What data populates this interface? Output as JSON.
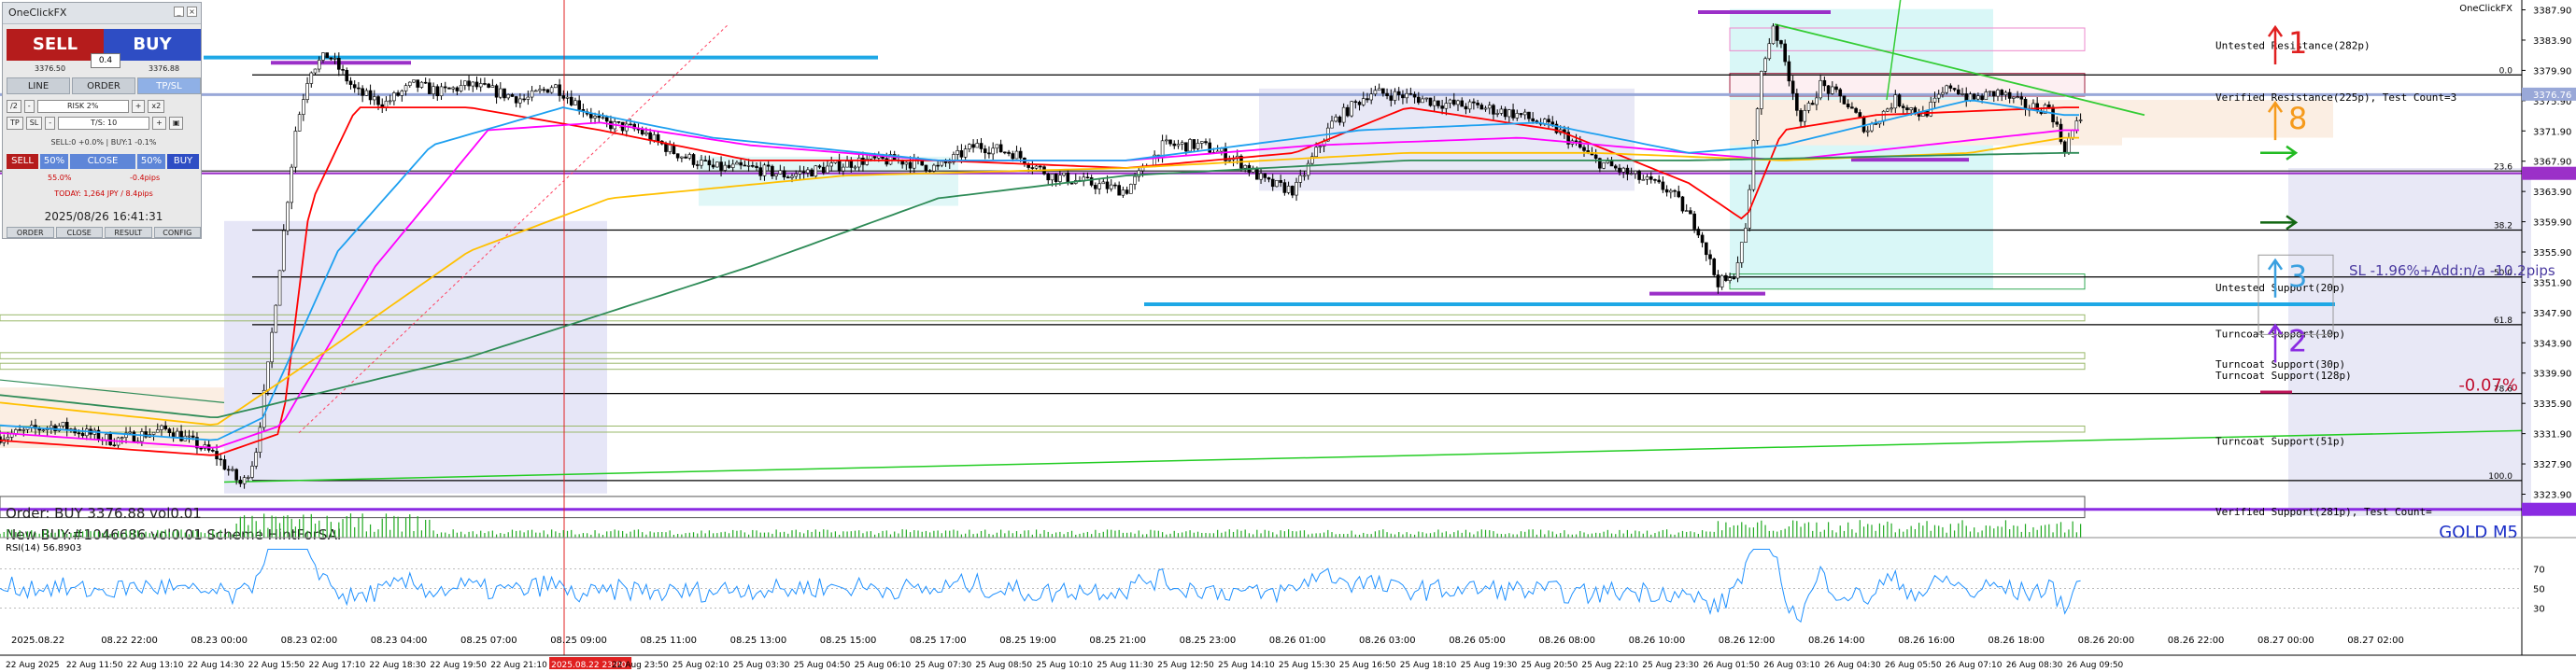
{
  "panel": {
    "title": "OneClickFX",
    "sell_label": "SELL",
    "buy_label": "BUY",
    "lot": "0.4",
    "sell_price": "3376.50",
    "buy_price": "3376.88",
    "tabs": [
      "LINE",
      "ORDER",
      "TP/SL"
    ],
    "row1": {
      "left": "/2",
      "risk": "RISK 2%",
      "right": "x2"
    },
    "row2": {
      "tp": "TP",
      "sl": "SL",
      "val": "T/S: 10"
    },
    "status": "SELL:0 +0.0% | BUY:1 -0.1%",
    "mid": [
      "SELL",
      "50%",
      "CLOSE",
      "50%",
      "BUY"
    ],
    "pl1": "55.0%",
    "pl2": "-0.4pips",
    "today": "TODAY: 1,264 JPY / 8.4pips",
    "clock": "2025/08/26  16:41:31",
    "bottom": [
      "ORDER",
      "CLOSE",
      "RESULT",
      "CONFIG"
    ]
  },
  "top_right_label": "OneClickFX",
  "overlay_text": {
    "order_line": "Order: BUY 3376.88 vol0.01",
    "new_buy": "New BUY:#1046686 vol0.01 Scheme HintForSAl",
    "sl_info": "SL -1.96%+Add:n/a -10.2pips",
    "pct": "-0.07%",
    "symbol": "GOLD M5",
    "rsi": "RSI(14) 56.8903"
  },
  "zone_labels": [
    {
      "text": "Untested Resistance(282p)",
      "price": 3383.2
    },
    {
      "text": "Verified Resistance(225p), Test Count=3",
      "price": 3376.4
    },
    {
      "text": "Untested Support(20p)",
      "price": 3351.2
    },
    {
      "text": "Turncoat Support(10p)",
      "price": 3345.1
    },
    {
      "text": "Turncoat Support(30p)",
      "price": 3341.1
    },
    {
      "text": "Turncoat Support(128p)",
      "price": 3339.6
    },
    {
      "text": "Turncoat Support(51p)",
      "price": 3330.9
    },
    {
      "text": "Verified Support(281p), Test Count=",
      "price": 3321.6
    }
  ],
  "fib_labels": [
    {
      "text": "0.0",
      "price": 3379.3
    },
    {
      "text": "23.6",
      "price": 3366.6
    },
    {
      "text": "38.2",
      "price": 3358.8
    },
    {
      "text": "50.0",
      "price": 3352.6
    },
    {
      "text": "61.8",
      "price": 3346.3
    },
    {
      "text": "78.6",
      "price": 3337.2
    },
    {
      "text": "100.0",
      "price": 3325.7
    }
  ],
  "signal_arrows": [
    {
      "label": "1",
      "dir": "up",
      "color": "#e02020",
      "price": 3383.4
    },
    {
      "label": "8",
      "dir": "up",
      "color": "#f59a1c",
      "price": 3373.4
    },
    {
      "label": "3",
      "dir": "up",
      "color": "#3aa0e0",
      "price": 3352.6
    },
    {
      "label": "2",
      "dir": "up",
      "color": "#8a2be2",
      "price": 3344.0
    }
  ],
  "price_current": "3376.76",
  "chart_data": {
    "type": "line",
    "symbol": "GOLD M5",
    "y_ticks": [
      3387.9,
      3383.9,
      3379.9,
      3375.9,
      3371.9,
      3367.9,
      3363.9,
      3359.9,
      3355.9,
      3351.9,
      3347.9,
      3343.9,
      3339.9,
      3335.9,
      3331.9,
      3327.9,
      3323.9
    ],
    "ylim": [
      3321.0,
      3389.2
    ],
    "x_date_labels": [
      "2025.08.22",
      "08.22 22:00",
      "08.23 00:00",
      "08.23 02:00",
      "08.23 04:00",
      "08.25 07:00",
      "08.25 09:00",
      "08.25 11:00",
      "08.25 13:00",
      "08.25 15:00",
      "08.25 17:00",
      "08.25 19:00",
      "08.25 21:00",
      "08.25 23:00",
      "08.26 01:00",
      "08.26 03:00",
      "08.26 05:00",
      "08.26 08:00",
      "08.26 10:00",
      "08.26 12:00",
      "08.26 14:00",
      "08.26 16:00",
      "08.26 18:00",
      "08.26 20:00",
      "08.26 22:00",
      "08.27 00:00",
      "08.27 02:00"
    ],
    "x_time_labels": [
      "22 Aug 2025",
      "22 Aug 11:50",
      "22 Aug 13:10",
      "22 Aug 14:30",
      "22 Aug 15:50",
      "22 Aug 17:10",
      "22 Aug 18:30",
      "22 Aug 19:50",
      "22 Aug 21:10",
      "2025.08.22 23:00",
      "22 Aug 23:50",
      "25 Aug 02:10",
      "25 Aug 03:30",
      "25 Aug 04:50",
      "25 Aug 06:10",
      "25 Aug 07:30",
      "25 Aug 08:50",
      "25 Aug 10:10",
      "25 Aug 11:30",
      "25 Aug 12:50",
      "25 Aug 14:10",
      "25 Aug 15:30",
      "25 Aug 16:50",
      "25 Aug 18:10",
      "25 Aug 19:30",
      "25 Aug 20:50",
      "25 Aug 22:10",
      "25 Aug 23:30",
      "26 Aug 01:50",
      "26 Aug 03:10",
      "26 Aug 04:30",
      "26 Aug 05:50",
      "26 Aug 07:10",
      "26 Aug 08:30",
      "26 Aug 09:50"
    ],
    "price_keys": [
      [
        0,
        3331.5
      ],
      [
        60,
        3333
      ],
      [
        120,
        3331
      ],
      [
        180,
        3332.5
      ],
      [
        230,
        3329
      ],
      [
        258,
        3325
      ],
      [
        272,
        3329
      ],
      [
        285,
        3340
      ],
      [
        300,
        3356
      ],
      [
        315,
        3372
      ],
      [
        330,
        3380
      ],
      [
        350,
        3382
      ],
      [
        380,
        3377
      ],
      [
        410,
        3375.5
      ],
      [
        440,
        3378
      ],
      [
        470,
        3377
      ],
      [
        500,
        3378
      ],
      [
        530,
        3377
      ],
      [
        560,
        3376
      ],
      [
        590,
        3378
      ],
      [
        610,
        3376
      ],
      [
        640,
        3373
      ],
      [
        680,
        3372
      ],
      [
        720,
        3369
      ],
      [
        760,
        3367
      ],
      [
        800,
        3367
      ],
      [
        840,
        3366
      ],
      [
        880,
        3367
      ],
      [
        920,
        3368
      ],
      [
        960,
        3368
      ],
      [
        1000,
        3367
      ],
      [
        1040,
        3370
      ],
      [
        1080,
        3369
      ],
      [
        1120,
        3366
      ],
      [
        1160,
        3365
      ],
      [
        1200,
        3364
      ],
      [
        1240,
        3370
      ],
      [
        1280,
        3370
      ],
      [
        1320,
        3368
      ],
      [
        1350,
        3365
      ],
      [
        1380,
        3364
      ],
      [
        1420,
        3373
      ],
      [
        1460,
        3377
      ],
      [
        1500,
        3376.5
      ],
      [
        1540,
        3375.5
      ],
      [
        1580,
        3375
      ],
      [
        1620,
        3374
      ],
      [
        1660,
        3372
      ],
      [
        1700,
        3368
      ],
      [
        1740,
        3366
      ],
      [
        1780,
        3364
      ],
      [
        1810,
        3359
      ],
      [
        1830,
        3352
      ],
      [
        1845,
        3352
      ],
      [
        1860,
        3358
      ],
      [
        1875,
        3378
      ],
      [
        1890,
        3386
      ],
      [
        1905,
        3380
      ],
      [
        1920,
        3373
      ],
      [
        1940,
        3378
      ],
      [
        1965,
        3376
      ],
      [
        1990,
        3372
      ],
      [
        2020,
        3376
      ],
      [
        2050,
        3374
      ],
      [
        2080,
        3378
      ],
      [
        2100,
        3376
      ],
      [
        2130,
        3377
      ],
      [
        2160,
        3375
      ],
      [
        2185,
        3375
      ],
      [
        2200,
        3369.5
      ],
      [
        2210,
        3372
      ],
      [
        2220,
        3374
      ]
    ],
    "ma_series": [
      {
        "color": "#ff0000",
        "keys": [
          [
            0,
            3331
          ],
          [
            230,
            3329
          ],
          [
            300,
            3332
          ],
          [
            330,
            3362
          ],
          [
            380,
            3375
          ],
          [
            500,
            3375
          ],
          [
            640,
            3372
          ],
          [
            800,
            3368
          ],
          [
            1000,
            3368
          ],
          [
            1200,
            3367
          ],
          [
            1380,
            3369
          ],
          [
            1500,
            3375
          ],
          [
            1660,
            3372
          ],
          [
            1800,
            3365
          ],
          [
            1860,
            3360
          ],
          [
            1900,
            3372
          ],
          [
            2000,
            3374
          ],
          [
            2200,
            3375
          ]
        ]
      },
      {
        "color": "#ff00ff",
        "keys": [
          [
            0,
            3332
          ],
          [
            230,
            3330
          ],
          [
            300,
            3333
          ],
          [
            400,
            3354
          ],
          [
            520,
            3372
          ],
          [
            640,
            3373
          ],
          [
            800,
            3370
          ],
          [
            1000,
            3368
          ],
          [
            1200,
            3368
          ],
          [
            1400,
            3370
          ],
          [
            1620,
            3371
          ],
          [
            1800,
            3369
          ],
          [
            1900,
            3368
          ],
          [
            2050,
            3370
          ],
          [
            2200,
            3372
          ]
        ]
      },
      {
        "color": "#1ea0f0",
        "keys": [
          [
            0,
            3333
          ],
          [
            230,
            3331
          ],
          [
            280,
            3334
          ],
          [
            360,
            3356
          ],
          [
            460,
            3370
          ],
          [
            600,
            3375
          ],
          [
            760,
            3371
          ],
          [
            1000,
            3368
          ],
          [
            1200,
            3368
          ],
          [
            1450,
            3372
          ],
          [
            1640,
            3373
          ],
          [
            1800,
            3369
          ],
          [
            1900,
            3370
          ],
          [
            2100,
            3376
          ],
          [
            2200,
            3374
          ]
        ]
      },
      {
        "color": "#ffc000",
        "keys": [
          [
            0,
            3336
          ],
          [
            230,
            3333
          ],
          [
            350,
            3343
          ],
          [
            500,
            3356
          ],
          [
            650,
            3363
          ],
          [
            900,
            3366
          ],
          [
            1200,
            3367
          ],
          [
            1500,
            3369
          ],
          [
            1700,
            3369
          ],
          [
            1900,
            3368
          ],
          [
            2100,
            3369
          ],
          [
            2200,
            3371
          ]
        ]
      },
      {
        "color": "#2e8b57",
        "keys": [
          [
            0,
            3337
          ],
          [
            230,
            3334
          ],
          [
            500,
            3342
          ],
          [
            800,
            3354
          ],
          [
            1000,
            3363
          ],
          [
            1200,
            3366
          ],
          [
            1500,
            3368
          ],
          [
            1800,
            3368
          ],
          [
            2200,
            3369
          ]
        ]
      }
    ],
    "rsi": {
      "label": "RSI(14) 56.8903",
      "levels": [
        70,
        50,
        30
      ]
    }
  }
}
